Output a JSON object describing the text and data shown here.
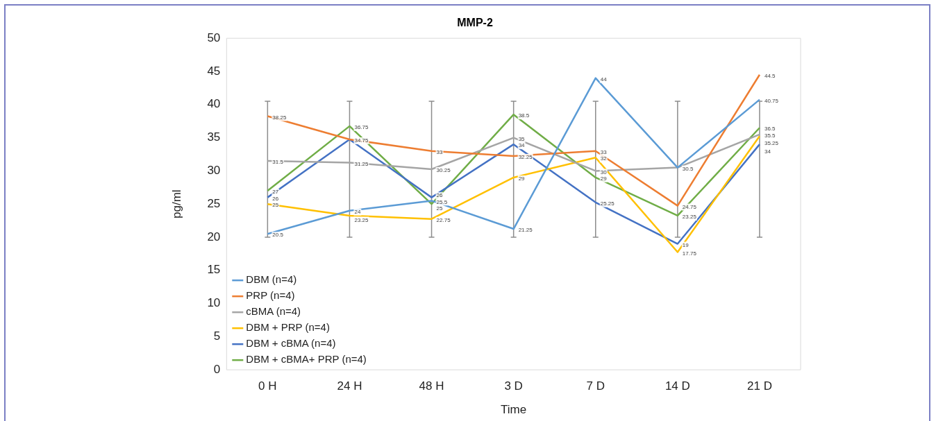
{
  "chart_data": {
    "type": "line",
    "title": "MMP-2",
    "xlabel": "Time",
    "ylabel": "pg/ml",
    "categories": [
      "0 H",
      "24 H",
      "48 H",
      "3 D",
      "7 D",
      "14 D",
      "21 D"
    ],
    "ylim": [
      0,
      50
    ],
    "yticks": [
      0,
      5,
      10,
      15,
      20,
      25,
      30,
      35,
      40,
      45,
      50
    ],
    "grid": false,
    "legend": "bottom left",
    "marker": "none",
    "line_style": "solid",
    "series": [
      {
        "name": "DBM (n=4)",
        "color": "#5b9bd5",
        "values": [
          20.5,
          24,
          25.5,
          21.25,
          44,
          30.5,
          40.75
        ],
        "value_labels": [
          "20.5",
          "24",
          "25.5",
          "21.25",
          "44",
          "30.5",
          "40.75"
        ]
      },
      {
        "name": "PRP (n=4)",
        "color": "#ed7d31",
        "values": [
          38.25,
          34.75,
          33,
          32.25,
          33,
          24.75,
          44.5
        ],
        "value_labels": [
          "38.25",
          "34.75",
          "33",
          "32.25",
          "33",
          "24.75",
          "44.5"
        ]
      },
      {
        "name": "cBMA (n=4)",
        "color": "#a5a5a5",
        "values": [
          31.5,
          31.25,
          30.25,
          35,
          30,
          30.5,
          35.5
        ],
        "value_labels": [
          "31.5",
          "31.25",
          "30.25",
          "35",
          "30",
          null,
          "35.5"
        ],
        "errors": [
          [
            20,
            40.5
          ],
          [
            20,
            40.5
          ],
          [
            20,
            40.5
          ],
          [
            20,
            40.5
          ],
          [
            20,
            40.5
          ],
          [
            20,
            40.5
          ],
          [
            20,
            40.5
          ]
        ]
      },
      {
        "name": "DBM + PRP (n=4)",
        "color": "#ffc000",
        "values": [
          25,
          23.25,
          22.75,
          29,
          32,
          17.75,
          35.25
        ],
        "value_labels": [
          "25",
          "23.25",
          "22.75",
          "29",
          "32",
          "17.75",
          "35.25"
        ]
      },
      {
        "name": "DBM + cBMA (n=4)",
        "color": "#4472c4",
        "values": [
          26,
          34.75,
          26,
          34,
          25.25,
          19,
          34
        ],
        "value_labels": [
          "26",
          null,
          "26",
          "34",
          "25.25",
          "19",
          "34"
        ]
      },
      {
        "name": "DBM + cBMA+ PRP (n=4)",
        "color": "#70ad47",
        "values": [
          27,
          36.75,
          25,
          38.5,
          29,
          23.25,
          36.5
        ],
        "value_labels": [
          "27",
          "36.75",
          "25",
          "38.5",
          "29",
          "23.25",
          "36.5"
        ]
      }
    ]
  }
}
